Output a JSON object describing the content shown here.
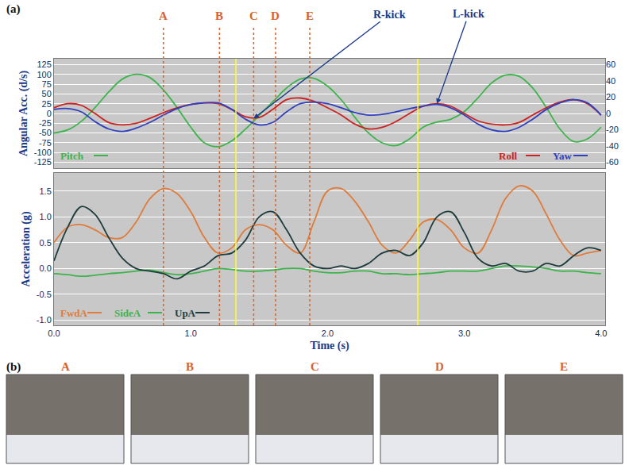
{
  "panel_labels": [
    "(a)",
    "(b)"
  ],
  "events": {
    "color": "#d9622b",
    "marks": [
      {
        "label": "A",
        "x": 0.8
      },
      {
        "label": "B",
        "x": 1.21
      },
      {
        "label": "C",
        "x": 1.46
      },
      {
        "label": "D",
        "x": 1.62
      },
      {
        "label": "E",
        "x": 1.87
      }
    ]
  },
  "phase_lines": {
    "color": "#ffff33",
    "x": [
      1.33,
      2.66
    ]
  },
  "photos": {
    "labels": [
      "A",
      "B",
      "C",
      "D",
      "E"
    ],
    "color": "#d9622b"
  },
  "chart_data": [
    {
      "type": "line",
      "ylabel": "Angular Acc. (d/s)",
      "xlim": [
        0,
        4.03
      ],
      "ylim": [
        -140,
        140
      ],
      "yticks": [
        -125,
        -100,
        -75,
        -50,
        -25,
        0,
        25,
        50,
        75,
        100,
        125
      ],
      "y2lim": [
        -67.2,
        67.2
      ],
      "y2ticks": [
        -60,
        -40,
        -20,
        0,
        20,
        40,
        60
      ],
      "grid": true,
      "legend": "lower left",
      "tick_labels": "y",
      "x": [
        0,
        0.1,
        0.2,
        0.3,
        0.4,
        0.5,
        0.6,
        0.7,
        0.8,
        0.9,
        1.0,
        1.1,
        1.2,
        1.3,
        1.4,
        1.5,
        1.6,
        1.7,
        1.8,
        1.9,
        2.0,
        2.1,
        2.2,
        2.3,
        2.4,
        2.5,
        2.6,
        2.7,
        2.8,
        2.9,
        3.0,
        3.1,
        3.2,
        3.3,
        3.4,
        3.5,
        3.6,
        3.7,
        3.8,
        3.9,
        4.0
      ],
      "series": [
        {
          "name": "Pitch",
          "color": "#3cb44b",
          "values": [
            -50,
            -42,
            -20,
            15,
            55,
            88,
            100,
            92,
            60,
            15,
            -35,
            -75,
            -85,
            -70,
            -40,
            -5,
            30,
            65,
            88,
            90,
            70,
            35,
            -10,
            -50,
            -75,
            -82,
            -65,
            -35,
            -22,
            -15,
            5,
            40,
            78,
            98,
            95,
            65,
            15,
            -40,
            -72,
            -65,
            -35
          ]
        },
        {
          "name": "Roll",
          "color": "#cc2222",
          "axis": "y2",
          "values": [
            7,
            12,
            10,
            0,
            -11,
            -14,
            -12,
            -6,
            1,
            7,
            11,
            13,
            12,
            5,
            -4,
            -5,
            5,
            17,
            19,
            15,
            7,
            -2,
            -13,
            -19,
            -17,
            -10,
            0,
            9,
            12,
            9,
            0,
            -9,
            -13,
            -14,
            -11,
            -2,
            7,
            14,
            17,
            12,
            -2
          ]
        },
        {
          "name": "Yaw",
          "color": "#2f3fbf",
          "axis": "y2",
          "values": [
            5,
            6,
            2,
            -10,
            -19,
            -22,
            -18,
            -11,
            -2,
            6,
            11,
            13,
            13,
            5,
            -7,
            -14,
            -11,
            2,
            12,
            14,
            12,
            7,
            1,
            -2,
            -1,
            2,
            6,
            9,
            11,
            7,
            -2,
            -13,
            -20,
            -22,
            -17,
            -7,
            5,
            13,
            17,
            13,
            -2
          ]
        }
      ],
      "annotations": [
        {
          "text": "R-kick",
          "x": 1.46,
          "y": -6,
          "axis": "y2"
        },
        {
          "text": "L-kick",
          "x": 2.8,
          "y": 12,
          "axis": "y2"
        }
      ]
    },
    {
      "type": "line",
      "xlabel": "Time (s)",
      "ylabel": "Acceleration (g)",
      "xlim": [
        0,
        4.03
      ],
      "ylim": [
        -1.1,
        1.85
      ],
      "xticks": [
        {
          "value": 0,
          "label": "0.0"
        },
        {
          "value": 1,
          "label": "1.0"
        },
        {
          "value": 2,
          "label": "2.0"
        },
        {
          "value": 3,
          "label": "3.0"
        },
        {
          "value": 4,
          "label": "4.0"
        }
      ],
      "yticks": [
        {
          "value": -1,
          "label": "-1.0"
        },
        -0.5,
        {
          "value": 0,
          "label": "0.0"
        },
        0.5,
        {
          "value": 1,
          "label": "1.0"
        },
        1.5
      ],
      "grid": true,
      "legend": "lower left",
      "x": [
        0,
        0.1,
        0.2,
        0.3,
        0.4,
        0.5,
        0.6,
        0.7,
        0.8,
        0.9,
        1.0,
        1.1,
        1.2,
        1.3,
        1.4,
        1.5,
        1.6,
        1.7,
        1.8,
        1.9,
        2.0,
        2.1,
        2.2,
        2.3,
        2.4,
        2.5,
        2.6,
        2.7,
        2.8,
        2.9,
        3.0,
        3.1,
        3.2,
        3.3,
        3.4,
        3.5,
        3.6,
        3.7,
        3.8,
        3.9,
        4.0
      ],
      "series": [
        {
          "name": "FwdA",
          "color": "#e07b39",
          "values": [
            0.5,
            0.8,
            0.85,
            0.75,
            0.6,
            0.6,
            0.9,
            1.35,
            1.55,
            1.45,
            1.1,
            0.6,
            0.3,
            0.4,
            0.75,
            0.85,
            0.75,
            0.45,
            0.3,
            0.9,
            1.5,
            1.55,
            1.3,
            0.9,
            0.45,
            0.3,
            0.55,
            0.9,
            0.95,
            0.75,
            0.4,
            0.3,
            0.75,
            1.35,
            1.6,
            1.5,
            1.05,
            0.55,
            0.25,
            0.3,
            0.35
          ]
        },
        {
          "name": "SideA",
          "color": "#3cb44b",
          "values": [
            -0.1,
            -0.12,
            -0.15,
            -0.13,
            -0.1,
            -0.08,
            -0.05,
            -0.03,
            -0.08,
            -0.12,
            -0.1,
            -0.05,
            0.0,
            -0.02,
            -0.05,
            -0.05,
            -0.03,
            0.0,
            0.0,
            -0.05,
            -0.08,
            -0.08,
            -0.05,
            -0.05,
            -0.1,
            -0.1,
            -0.12,
            -0.1,
            -0.08,
            -0.05,
            -0.05,
            -0.05,
            0.0,
            0.05,
            0.05,
            0.03,
            0.0,
            -0.05,
            -0.05,
            -0.08,
            -0.1
          ]
        },
        {
          "name": "UpA",
          "color": "#1e3c3c",
          "values": [
            0.15,
            0.8,
            1.2,
            1.05,
            0.6,
            0.2,
            0.0,
            -0.05,
            -0.1,
            -0.2,
            -0.05,
            0.05,
            0.25,
            0.3,
            0.55,
            1.0,
            1.1,
            0.75,
            0.3,
            0.05,
            0.0,
            0.05,
            0.0,
            0.1,
            0.3,
            0.35,
            0.25,
            0.5,
            1.0,
            1.1,
            0.7,
            0.2,
            0.05,
            0.1,
            -0.05,
            -0.05,
            0.1,
            0.05,
            0.25,
            0.4,
            0.35
          ]
        }
      ]
    }
  ]
}
